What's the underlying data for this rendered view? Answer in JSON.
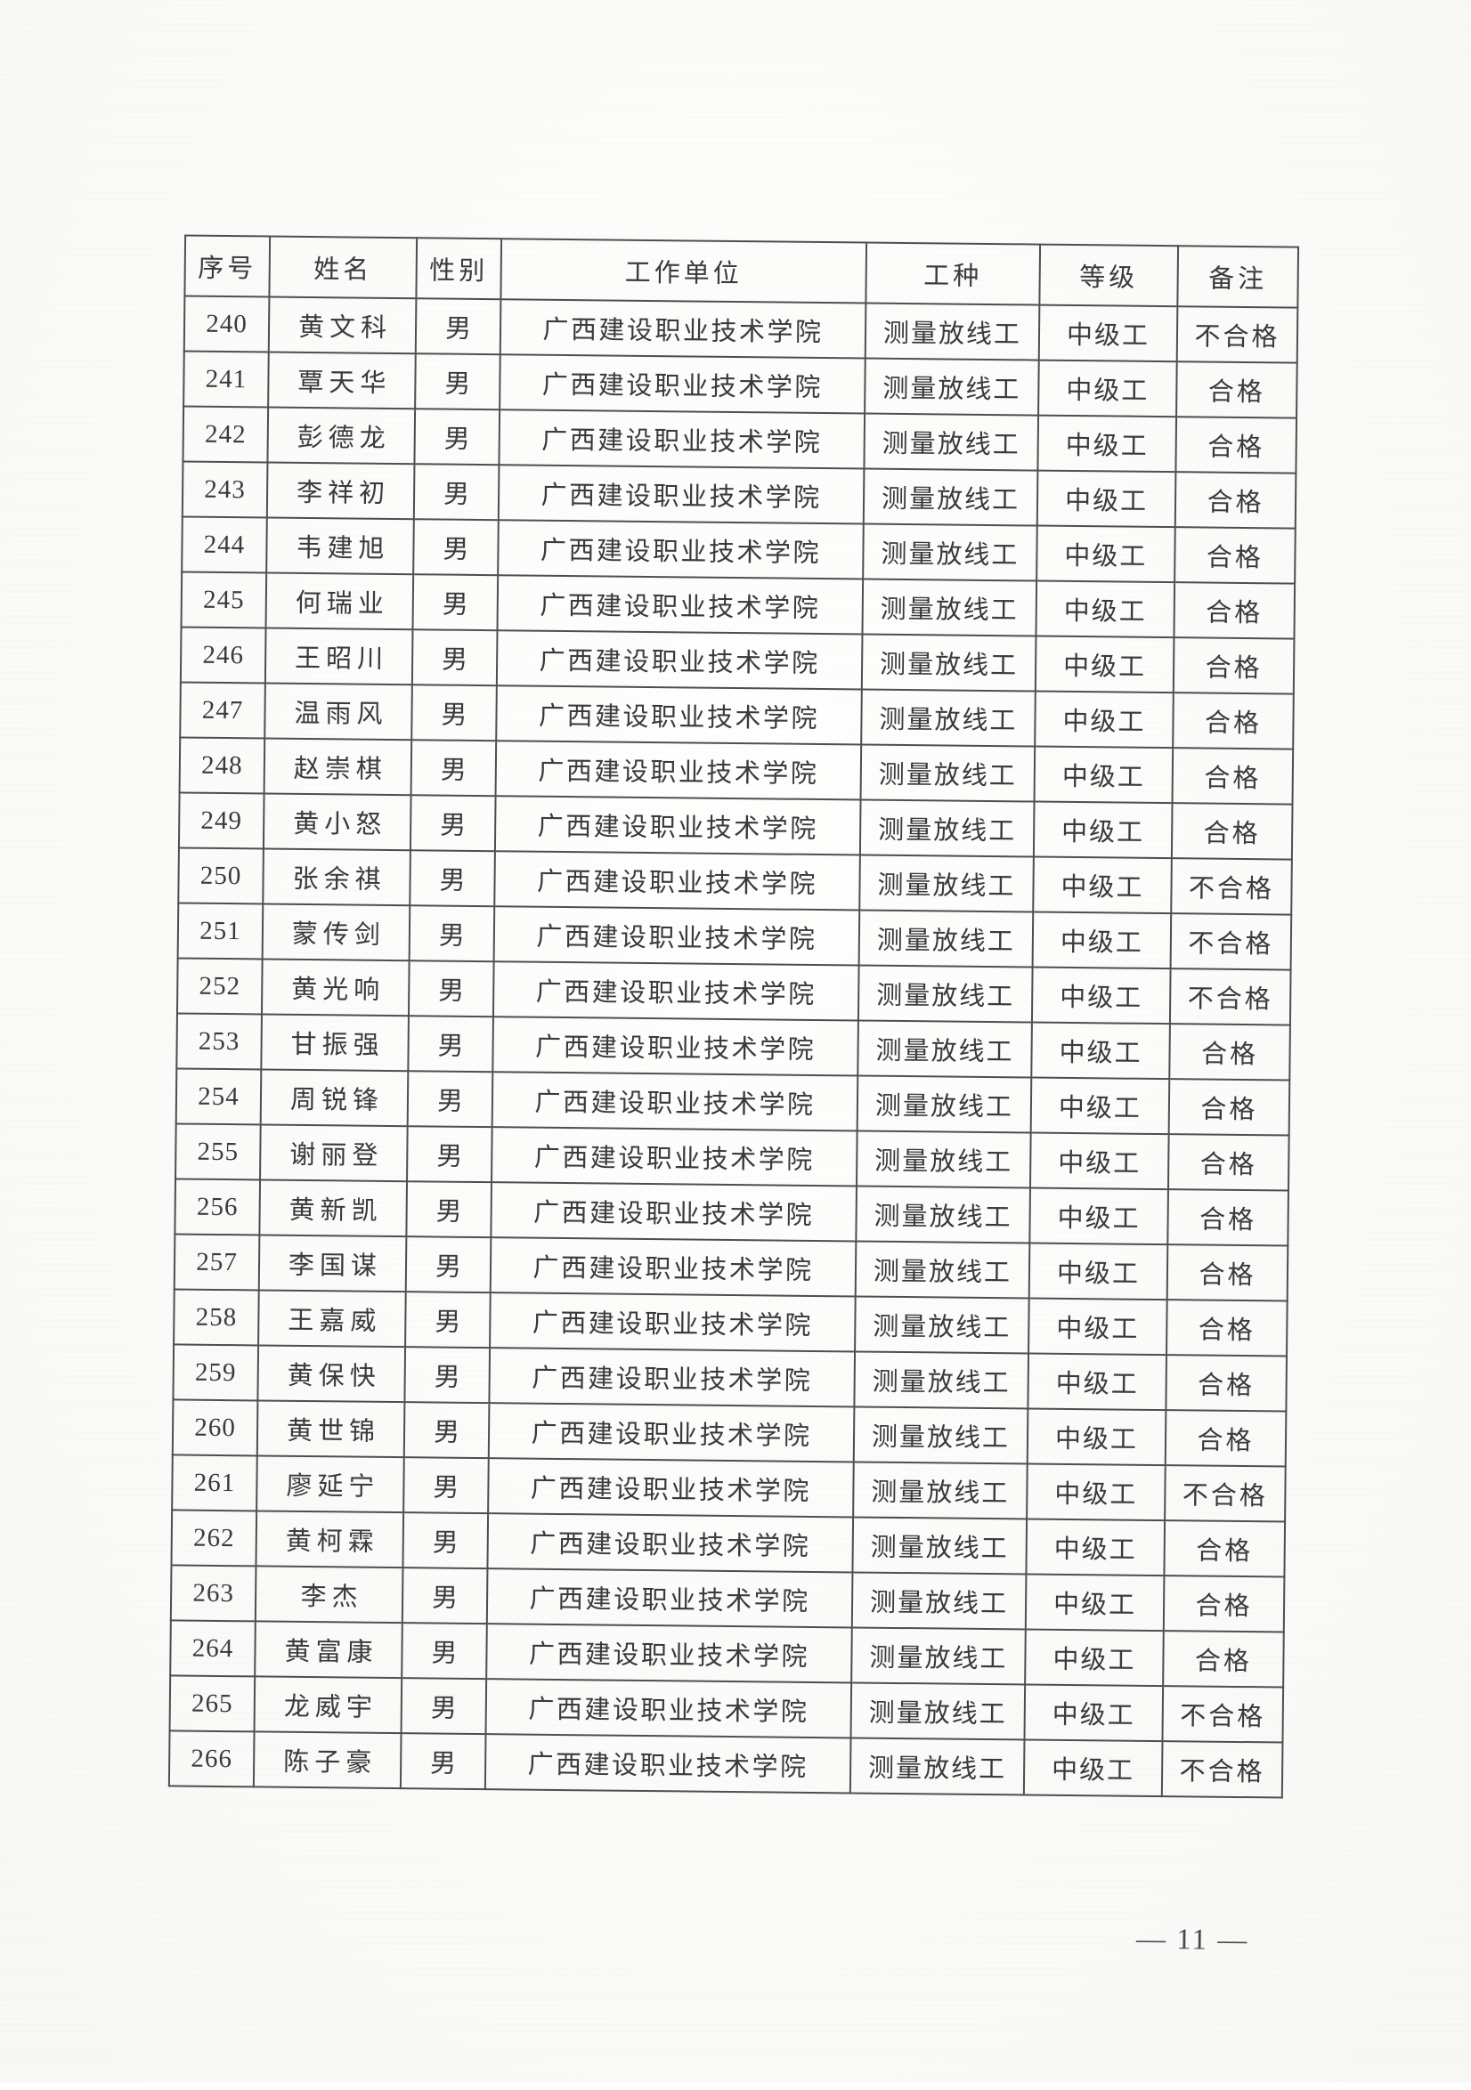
{
  "colors": {
    "page-bg": "#fdfdfb",
    "ink": "#3a3a3a",
    "line": "#4e4e4e",
    "footer-ink": "#4a4a4a"
  },
  "document": {
    "page_number": "11",
    "page_footer": "— 11 —"
  },
  "table": {
    "headers": [
      "序号",
      "姓名",
      "性别",
      "工作单位",
      "工种",
      "等级",
      "备注"
    ],
    "rows": [
      {
        "no": "240",
        "name": "黄文科",
        "gender": "男",
        "unit": "广西建设职业技术学院",
        "trade": "测量放线工",
        "level": "中级工",
        "remark": "不合格"
      },
      {
        "no": "241",
        "name": "覃天华",
        "gender": "男",
        "unit": "广西建设职业技术学院",
        "trade": "测量放线工",
        "level": "中级工",
        "remark": "合格"
      },
      {
        "no": "242",
        "name": "彭德龙",
        "gender": "男",
        "unit": "广西建设职业技术学院",
        "trade": "测量放线工",
        "level": "中级工",
        "remark": "合格"
      },
      {
        "no": "243",
        "name": "李祥初",
        "gender": "男",
        "unit": "广西建设职业技术学院",
        "trade": "测量放线工",
        "level": "中级工",
        "remark": "合格"
      },
      {
        "no": "244",
        "name": "韦建旭",
        "gender": "男",
        "unit": "广西建设职业技术学院",
        "trade": "测量放线工",
        "level": "中级工",
        "remark": "合格"
      },
      {
        "no": "245",
        "name": "何瑞业",
        "gender": "男",
        "unit": "广西建设职业技术学院",
        "trade": "测量放线工",
        "level": "中级工",
        "remark": "合格"
      },
      {
        "no": "246",
        "name": "王昭川",
        "gender": "男",
        "unit": "广西建设职业技术学院",
        "trade": "测量放线工",
        "level": "中级工",
        "remark": "合格"
      },
      {
        "no": "247",
        "name": "温雨风",
        "gender": "男",
        "unit": "广西建设职业技术学院",
        "trade": "测量放线工",
        "level": "中级工",
        "remark": "合格"
      },
      {
        "no": "248",
        "name": "赵崇棋",
        "gender": "男",
        "unit": "广西建设职业技术学院",
        "trade": "测量放线工",
        "level": "中级工",
        "remark": "合格"
      },
      {
        "no": "249",
        "name": "黄小怒",
        "gender": "男",
        "unit": "广西建设职业技术学院",
        "trade": "测量放线工",
        "level": "中级工",
        "remark": "合格"
      },
      {
        "no": "250",
        "name": "张余祺",
        "gender": "男",
        "unit": "广西建设职业技术学院",
        "trade": "测量放线工",
        "level": "中级工",
        "remark": "不合格"
      },
      {
        "no": "251",
        "name": "蒙传剑",
        "gender": "男",
        "unit": "广西建设职业技术学院",
        "trade": "测量放线工",
        "level": "中级工",
        "remark": "不合格"
      },
      {
        "no": "252",
        "name": "黄光响",
        "gender": "男",
        "unit": "广西建设职业技术学院",
        "trade": "测量放线工",
        "level": "中级工",
        "remark": "不合格"
      },
      {
        "no": "253",
        "name": "甘振强",
        "gender": "男",
        "unit": "广西建设职业技术学院",
        "trade": "测量放线工",
        "level": "中级工",
        "remark": "合格"
      },
      {
        "no": "254",
        "name": "周锐锋",
        "gender": "男",
        "unit": "广西建设职业技术学院",
        "trade": "测量放线工",
        "level": "中级工",
        "remark": "合格"
      },
      {
        "no": "255",
        "name": "谢丽登",
        "gender": "男",
        "unit": "广西建设职业技术学院",
        "trade": "测量放线工",
        "level": "中级工",
        "remark": "合格"
      },
      {
        "no": "256",
        "name": "黄新凯",
        "gender": "男",
        "unit": "广西建设职业技术学院",
        "trade": "测量放线工",
        "level": "中级工",
        "remark": "合格"
      },
      {
        "no": "257",
        "name": "李国谋",
        "gender": "男",
        "unit": "广西建设职业技术学院",
        "trade": "测量放线工",
        "level": "中级工",
        "remark": "合格"
      },
      {
        "no": "258",
        "name": "王嘉威",
        "gender": "男",
        "unit": "广西建设职业技术学院",
        "trade": "测量放线工",
        "level": "中级工",
        "remark": "合格"
      },
      {
        "no": "259",
        "name": "黄保快",
        "gender": "男",
        "unit": "广西建设职业技术学院",
        "trade": "测量放线工",
        "level": "中级工",
        "remark": "合格"
      },
      {
        "no": "260",
        "name": "黄世锦",
        "gender": "男",
        "unit": "广西建设职业技术学院",
        "trade": "测量放线工",
        "level": "中级工",
        "remark": "合格"
      },
      {
        "no": "261",
        "name": "廖延宁",
        "gender": "男",
        "unit": "广西建设职业技术学院",
        "trade": "测量放线工",
        "level": "中级工",
        "remark": "不合格"
      },
      {
        "no": "262",
        "name": "黄柯霖",
        "gender": "男",
        "unit": "广西建设职业技术学院",
        "trade": "测量放线工",
        "level": "中级工",
        "remark": "合格"
      },
      {
        "no": "263",
        "name": "李杰",
        "gender": "男",
        "unit": "广西建设职业技术学院",
        "trade": "测量放线工",
        "level": "中级工",
        "remark": "合格"
      },
      {
        "no": "264",
        "name": "黄富康",
        "gender": "男",
        "unit": "广西建设职业技术学院",
        "trade": "测量放线工",
        "level": "中级工",
        "remark": "合格"
      },
      {
        "no": "265",
        "name": "龙威宇",
        "gender": "男",
        "unit": "广西建设职业技术学院",
        "trade": "测量放线工",
        "level": "中级工",
        "remark": "不合格"
      },
      {
        "no": "266",
        "name": "陈子豪",
        "gender": "男",
        "unit": "广西建设职业技术学院",
        "trade": "测量放线工",
        "level": "中级工",
        "remark": "不合格"
      }
    ]
  }
}
